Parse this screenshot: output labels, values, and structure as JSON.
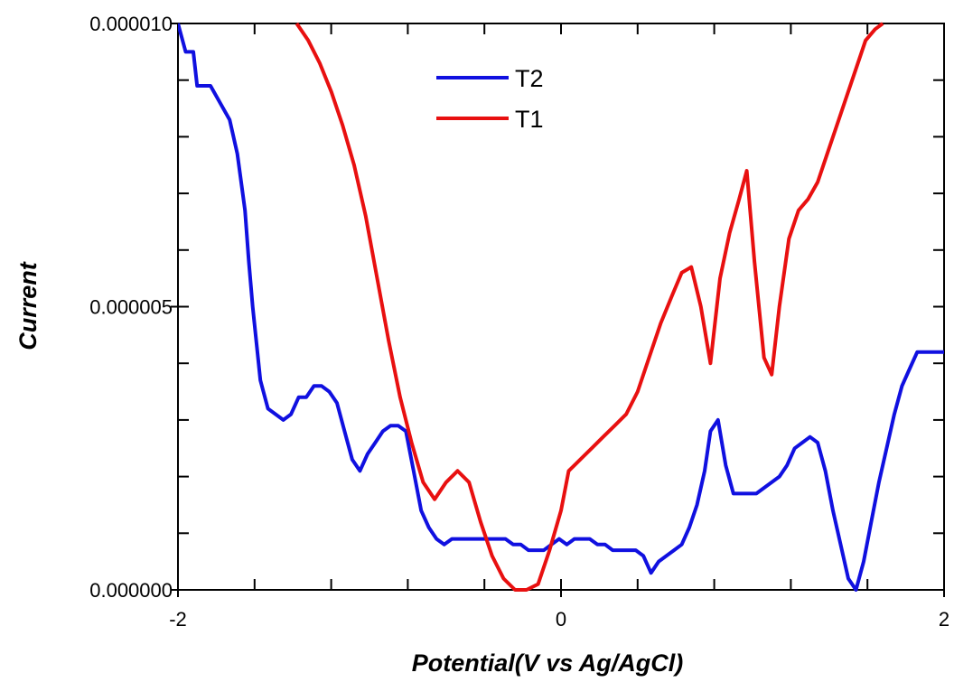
{
  "chart_data": {
    "type": "line",
    "xlabel": "Potential(V vs Ag/AgCl)",
    "ylabel": "Current",
    "xlim": [
      -2,
      2
    ],
    "ylim": [
      0,
      1e-05
    ],
    "x_ticks": [
      "-2",
      "0",
      "2"
    ],
    "y_ticks": [
      "0.000000",
      "0.000005",
      "0.000010"
    ],
    "legend_position": "top-center",
    "grid": false,
    "series": [
      {
        "name": "T2",
        "color": "#1010e0",
        "points": [
          [
            -2.0,
            1e-05
          ],
          [
            -1.96,
            9.5e-06
          ],
          [
            -1.92,
            9.5e-06
          ],
          [
            -1.9,
            8.9e-06
          ],
          [
            -1.86,
            8.9e-06
          ],
          [
            -1.83,
            8.9e-06
          ],
          [
            -1.78,
            8.6e-06
          ],
          [
            -1.73,
            8.3e-06
          ],
          [
            -1.69,
            7.7e-06
          ],
          [
            -1.65,
            6.7e-06
          ],
          [
            -1.63,
            5.8e-06
          ],
          [
            -1.61,
            5e-06
          ],
          [
            -1.57,
            3.7e-06
          ],
          [
            -1.53,
            3.2e-06
          ],
          [
            -1.49,
            3.1e-06
          ],
          [
            -1.45,
            3e-06
          ],
          [
            -1.41,
            3.1e-06
          ],
          [
            -1.37,
            3.4e-06
          ],
          [
            -1.33,
            3.4e-06
          ],
          [
            -1.29,
            3.6e-06
          ],
          [
            -1.25,
            3.6e-06
          ],
          [
            -1.21,
            3.5e-06
          ],
          [
            -1.17,
            3.3e-06
          ],
          [
            -1.13,
            2.8e-06
          ],
          [
            -1.09,
            2.3e-06
          ],
          [
            -1.05,
            2.1e-06
          ],
          [
            -1.01,
            2.4e-06
          ],
          [
            -0.97,
            2.6e-06
          ],
          [
            -0.93,
            2.8e-06
          ],
          [
            -0.89,
            2.9e-06
          ],
          [
            -0.85,
            2.9e-06
          ],
          [
            -0.81,
            2.8e-06
          ],
          [
            -0.77,
            2.1e-06
          ],
          [
            -0.73,
            1.4e-06
          ],
          [
            -0.69,
            1.1e-06
          ],
          [
            -0.65,
            9e-07
          ],
          [
            -0.61,
            8e-07
          ],
          [
            -0.57,
            9e-07
          ],
          [
            -0.53,
            9e-07
          ],
          [
            -0.49,
            9e-07
          ],
          [
            -0.45,
            9e-07
          ],
          [
            -0.41,
            9e-07
          ],
          [
            -0.37,
            9e-07
          ],
          [
            -0.33,
            9e-07
          ],
          [
            -0.29,
            9e-07
          ],
          [
            -0.25,
            8e-07
          ],
          [
            -0.21,
            8e-07
          ],
          [
            -0.17,
            7e-07
          ],
          [
            -0.13,
            7e-07
          ],
          [
            -0.09,
            7e-07
          ],
          [
            -0.05,
            8e-07
          ],
          [
            -0.01,
            9e-07
          ],
          [
            0.03,
            8e-07
          ],
          [
            0.07,
            9e-07
          ],
          [
            0.11,
            9e-07
          ],
          [
            0.15,
            9e-07
          ],
          [
            0.19,
            8e-07
          ],
          [
            0.23,
            8e-07
          ],
          [
            0.27,
            7e-07
          ],
          [
            0.31,
            7e-07
          ],
          [
            0.35,
            7e-07
          ],
          [
            0.39,
            7e-07
          ],
          [
            0.43,
            6e-07
          ],
          [
            0.47,
            3e-07
          ],
          [
            0.51,
            5e-07
          ],
          [
            0.55,
            6e-07
          ],
          [
            0.59,
            7e-07
          ],
          [
            0.63,
            8e-07
          ],
          [
            0.67,
            1.1e-06
          ],
          [
            0.71,
            1.5e-06
          ],
          [
            0.75,
            2.1e-06
          ],
          [
            0.78,
            2.8e-06
          ],
          [
            0.82,
            3e-06
          ],
          [
            0.86,
            2.2e-06
          ],
          [
            0.9,
            1.7e-06
          ],
          [
            0.94,
            1.7e-06
          ],
          [
            0.98,
            1.7e-06
          ],
          [
            1.02,
            1.7e-06
          ],
          [
            1.06,
            1.8e-06
          ],
          [
            1.1,
            1.9e-06
          ],
          [
            1.14,
            2e-06
          ],
          [
            1.18,
            2.2e-06
          ],
          [
            1.22,
            2.5e-06
          ],
          [
            1.26,
            2.6e-06
          ],
          [
            1.3,
            2.7e-06
          ],
          [
            1.34,
            2.6e-06
          ],
          [
            1.38,
            2.1e-06
          ],
          [
            1.42,
            1.4e-06
          ],
          [
            1.46,
            8e-07
          ],
          [
            1.5,
            2e-07
          ],
          [
            1.54,
            0.0
          ],
          [
            1.58,
            5e-07
          ],
          [
            1.62,
            1.2e-06
          ],
          [
            1.66,
            1.9e-06
          ],
          [
            1.7,
            2.5e-06
          ],
          [
            1.74,
            3.1e-06
          ],
          [
            1.78,
            3.6e-06
          ],
          [
            1.82,
            3.9e-06
          ],
          [
            1.86,
            4.2e-06
          ],
          [
            2.0,
            4.2e-06
          ]
        ]
      },
      {
        "name": "T1",
        "color": "#e81010",
        "points": [
          [
            -1.38,
            1e-05
          ],
          [
            -1.32,
            9.7e-06
          ],
          [
            -1.26,
            9.3e-06
          ],
          [
            -1.2,
            8.8e-06
          ],
          [
            -1.14,
            8.2e-06
          ],
          [
            -1.08,
            7.5e-06
          ],
          [
            -1.02,
            6.6e-06
          ],
          [
            -0.96,
            5.5e-06
          ],
          [
            -0.9,
            4.4e-06
          ],
          [
            -0.84,
            3.4e-06
          ],
          [
            -0.78,
            2.6e-06
          ],
          [
            -0.72,
            1.9e-06
          ],
          [
            -0.66,
            1.6e-06
          ],
          [
            -0.6,
            1.9e-06
          ],
          [
            -0.54,
            2.1e-06
          ],
          [
            -0.48,
            1.9e-06
          ],
          [
            -0.42,
            1.2e-06
          ],
          [
            -0.36,
            6e-07
          ],
          [
            -0.3,
            2e-07
          ],
          [
            -0.24,
            0.0
          ],
          [
            -0.18,
            0.0
          ],
          [
            -0.12,
            1e-07
          ],
          [
            -0.06,
            7e-07
          ],
          [
            0.0,
            1.4e-06
          ],
          [
            0.04,
            2.1e-06
          ],
          [
            0.1,
            2.3e-06
          ],
          [
            0.16,
            2.5e-06
          ],
          [
            0.22,
            2.7e-06
          ],
          [
            0.28,
            2.9e-06
          ],
          [
            0.34,
            3.1e-06
          ],
          [
            0.4,
            3.5e-06
          ],
          [
            0.46,
            4.1e-06
          ],
          [
            0.52,
            4.7e-06
          ],
          [
            0.58,
            5.2e-06
          ],
          [
            0.63,
            5.6e-06
          ],
          [
            0.68,
            5.7e-06
          ],
          [
            0.73,
            5e-06
          ],
          [
            0.78,
            4e-06
          ],
          [
            0.83,
            5.5e-06
          ],
          [
            0.88,
            6.3e-06
          ],
          [
            0.93,
            6.9e-06
          ],
          [
            0.97,
            7.4e-06
          ],
          [
            1.01,
            5.8e-06
          ],
          [
            1.06,
            4.1e-06
          ],
          [
            1.1,
            3.8e-06
          ],
          [
            1.14,
            5e-06
          ],
          [
            1.19,
            6.2e-06
          ],
          [
            1.24,
            6.7e-06
          ],
          [
            1.29,
            6.9e-06
          ],
          [
            1.34,
            7.2e-06
          ],
          [
            1.39,
            7.7e-06
          ],
          [
            1.44,
            8.2e-06
          ],
          [
            1.49,
            8.7e-06
          ],
          [
            1.54,
            9.2e-06
          ],
          [
            1.59,
            9.7e-06
          ],
          [
            1.64,
            9.9e-06
          ],
          [
            1.68,
            1e-05
          ]
        ]
      }
    ]
  }
}
